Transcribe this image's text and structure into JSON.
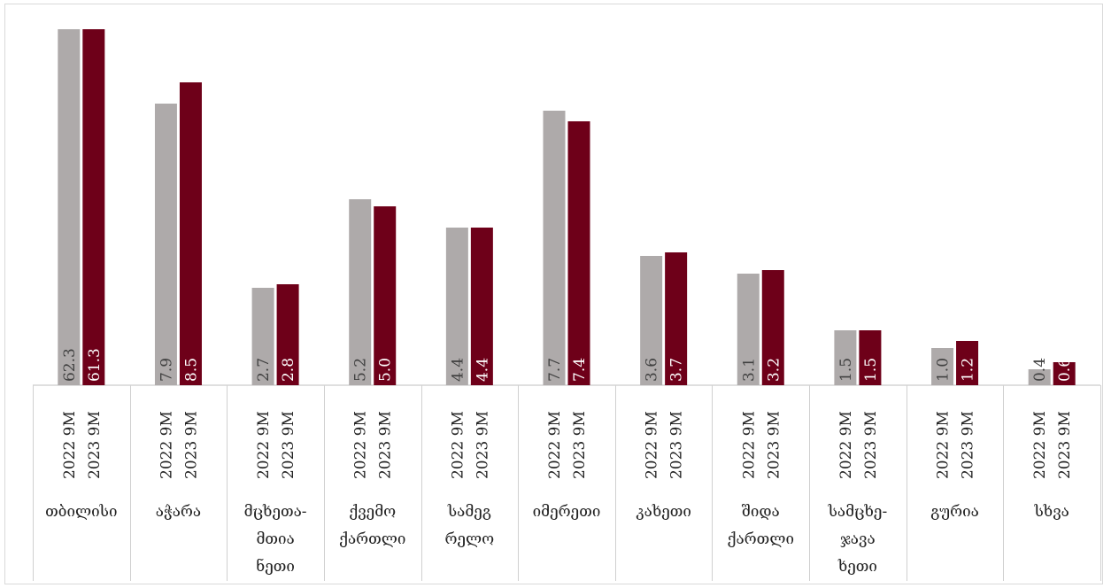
{
  "chart_data": {
    "type": "bar",
    "title": "",
    "xlabel": "",
    "ylabel": "",
    "legend": "none",
    "grid": false,
    "categories": [
      [
        "თბილისი"
      ],
      [
        "აჭარა"
      ],
      [
        "მცხეთა-",
        "მთია",
        "ნეთი"
      ],
      [
        "ქვემო",
        "ქართლი"
      ],
      [
        "სამეგ",
        "რელო"
      ],
      [
        "იმერეთი"
      ],
      [
        "კახეთი"
      ],
      [
        "შიდა",
        "ქართლი"
      ],
      [
        "სამცხე-",
        "ჯავა",
        "ხეთი"
      ],
      [
        "გურია"
      ],
      [
        "სხვა"
      ]
    ],
    "series": [
      {
        "name": "2022 9M",
        "color": "#aeaaaa",
        "values": [
          62.3,
          7.9,
          2.7,
          5.2,
          4.4,
          7.7,
          3.6,
          3.1,
          1.5,
          1.0,
          0.4
        ],
        "labels": [
          "62.3",
          "7.9",
          "2.7",
          "5.2",
          "4.4",
          "7.7",
          "3.6",
          "3.1",
          "1.5",
          "1.0",
          "0.4"
        ],
        "bar_heights": [
          402,
          318,
          110,
          210,
          178,
          310,
          146,
          126,
          62,
          42,
          18
        ]
      },
      {
        "name": "2023 9M",
        "color": "#6e0019",
        "values": [
          61.3,
          8.5,
          2.8,
          5.0,
          4.4,
          7.4,
          3.7,
          3.2,
          1.5,
          1.2,
          0.6
        ],
        "labels": [
          "61.3",
          "8.5",
          "2.8",
          "5.0",
          "4.4",
          "7.4",
          "3.7",
          "3.2",
          "1.5",
          "1.2",
          "0.6"
        ],
        "bar_heights": [
          402,
          342,
          114,
          202,
          178,
          298,
          150,
          130,
          62,
          50,
          26
        ]
      }
    ]
  }
}
